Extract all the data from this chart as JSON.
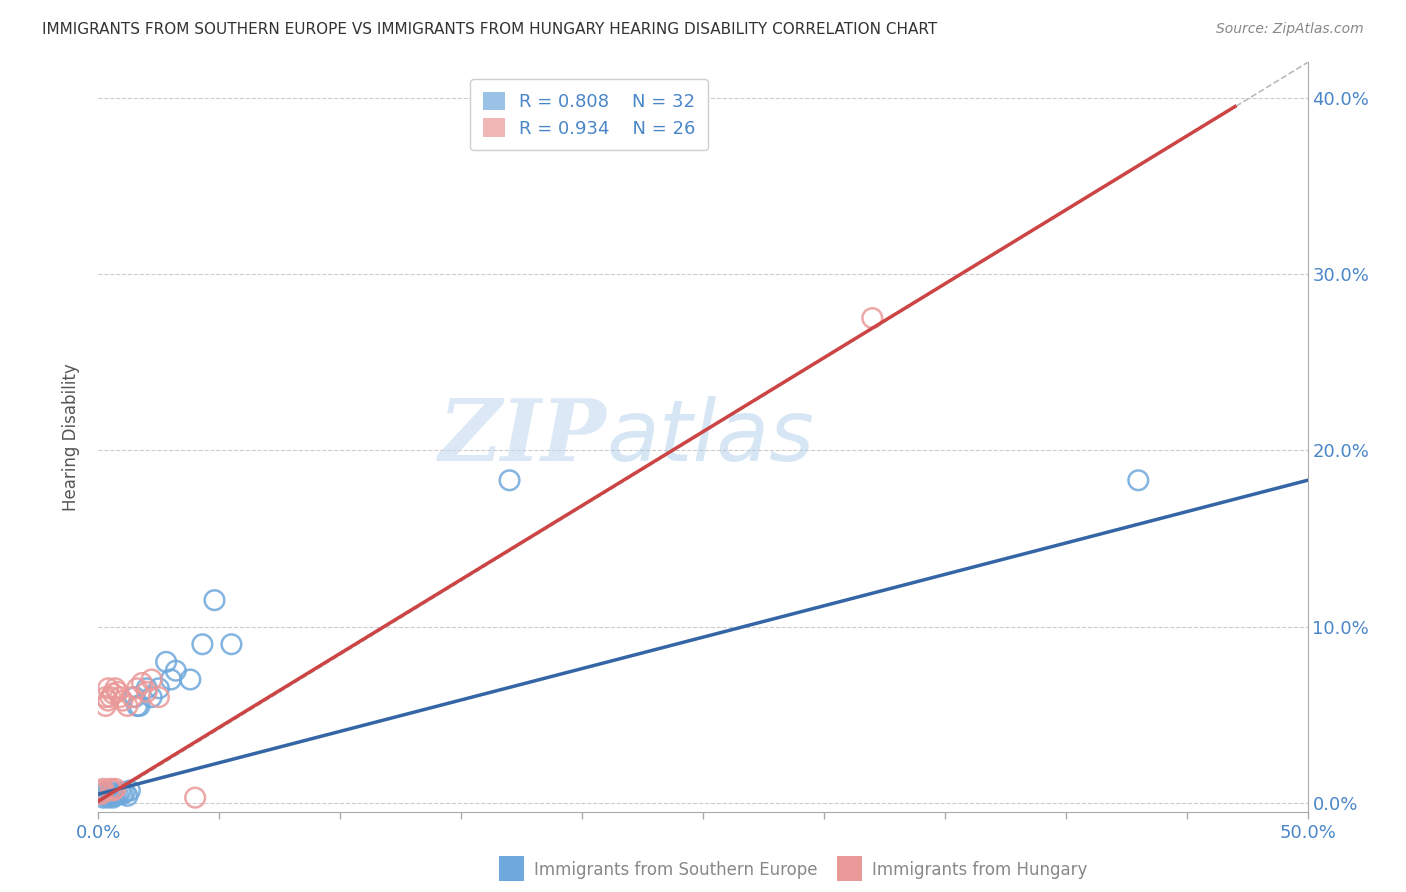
{
  "title": "IMMIGRANTS FROM SOUTHERN EUROPE VS IMMIGRANTS FROM HUNGARY HEARING DISABILITY CORRELATION CHART",
  "source": "Source: ZipAtlas.com",
  "xlabel_label": "Immigrants from Southern Europe",
  "xlabel_label2": "Immigrants from Hungary",
  "ylabel": "Hearing Disability",
  "xlim": [
    0.0,
    0.5
  ],
  "ylim": [
    -0.005,
    0.42
  ],
  "xticks": [
    0.0,
    0.05,
    0.1,
    0.15,
    0.2,
    0.25,
    0.3,
    0.35,
    0.4,
    0.45,
    0.5
  ],
  "xtick_labels_show": [
    0.0,
    0.5
  ],
  "yticks_right": [
    0.0,
    0.1,
    0.2,
    0.3,
    0.4
  ],
  "blue_color": "#6fa8dc",
  "pink_color": "#ea9999",
  "blue_line_color": "#3465a4",
  "pink_line_color": "#cc4444",
  "grey_line_color": "#bbbbbb",
  "title_color": "#000000",
  "axis_label_color": "#4a86c8",
  "watermark_zip": "ZIP",
  "watermark_atlas": "atlas",
  "legend_R1": "R = 0.808",
  "legend_N1": "N = 32",
  "legend_R2": "R = 0.934",
  "legend_N2": "N = 26",
  "blue_scatter_x": [
    0.001,
    0.002,
    0.003,
    0.003,
    0.004,
    0.004,
    0.005,
    0.005,
    0.006,
    0.006,
    0.007,
    0.008,
    0.009,
    0.01,
    0.011,
    0.012,
    0.013,
    0.015,
    0.016,
    0.017,
    0.02,
    0.022,
    0.025,
    0.028,
    0.03,
    0.032,
    0.038,
    0.043,
    0.048,
    0.055,
    0.17,
    0.43
  ],
  "blue_scatter_y": [
    0.005,
    0.003,
    0.004,
    0.006,
    0.003,
    0.005,
    0.004,
    0.006,
    0.005,
    0.003,
    0.004,
    0.005,
    0.006,
    0.005,
    0.006,
    0.004,
    0.007,
    0.06,
    0.055,
    0.055,
    0.065,
    0.06,
    0.065,
    0.08,
    0.07,
    0.075,
    0.07,
    0.09,
    0.115,
    0.09,
    0.183,
    0.183
  ],
  "pink_scatter_x": [
    0.001,
    0.001,
    0.002,
    0.002,
    0.003,
    0.003,
    0.004,
    0.004,
    0.005,
    0.005,
    0.006,
    0.006,
    0.007,
    0.007,
    0.008,
    0.009,
    0.01,
    0.012,
    0.014,
    0.016,
    0.018,
    0.02,
    0.022,
    0.025,
    0.04,
    0.32
  ],
  "pink_scatter_y": [
    0.005,
    0.007,
    0.006,
    0.008,
    0.055,
    0.06,
    0.058,
    0.065,
    0.06,
    0.008,
    0.062,
    0.007,
    0.065,
    0.008,
    0.063,
    0.06,
    0.058,
    0.055,
    0.06,
    0.065,
    0.068,
    0.063,
    0.07,
    0.06,
    0.003,
    0.275
  ],
  "blue_trend_x": [
    0.0,
    0.5
  ],
  "blue_trend_y": [
    0.005,
    0.183
  ],
  "pink_trend_x": [
    0.0,
    0.47
  ],
  "pink_trend_y": [
    0.001,
    0.395
  ],
  "grey_trend_x": [
    0.0,
    0.5
  ],
  "grey_trend_y": [
    0.0,
    0.42
  ]
}
